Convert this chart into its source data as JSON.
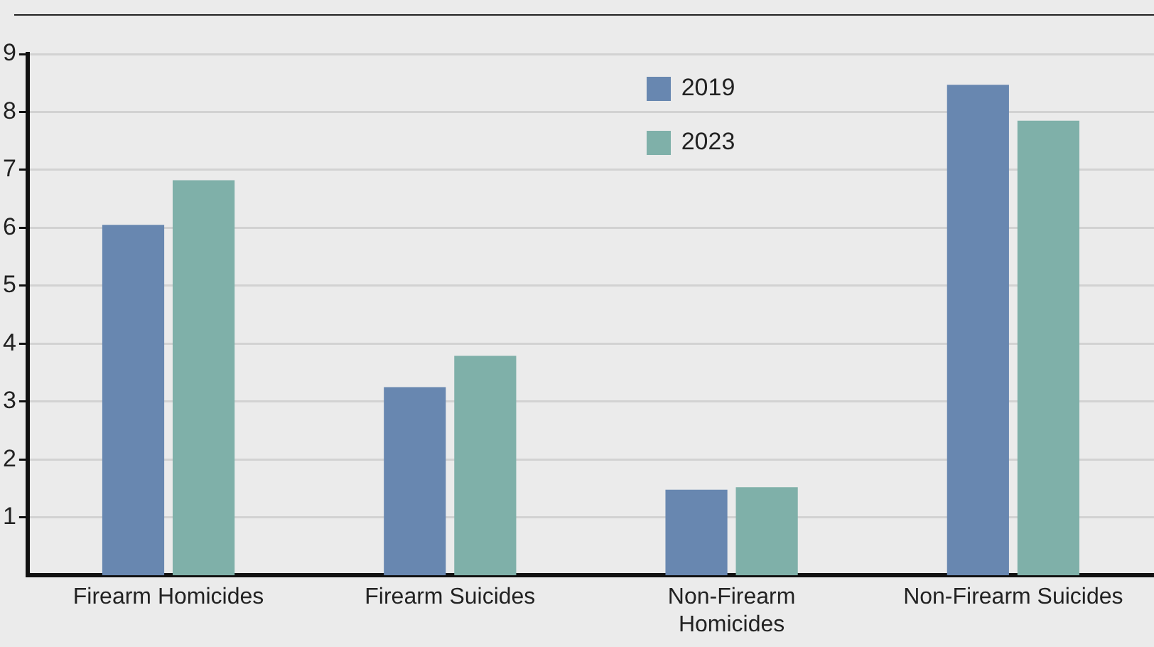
{
  "chart_data": {
    "type": "bar",
    "categories": [
      "Firearm Homicides",
      "Firearm Suicides",
      "Non-Firearm Homicides",
      "Non-Firearm Suicides"
    ],
    "series": [
      {
        "name": "2019",
        "color": "#6887b0",
        "values": [
          6.05,
          3.25,
          1.48,
          8.47
        ]
      },
      {
        "name": "2023",
        "color": "#7fb0a9",
        "values": [
          6.82,
          3.79,
          1.52,
          7.85
        ]
      }
    ],
    "ylim": [
      0,
      9
    ],
    "yticks": [
      1,
      2,
      3,
      4,
      5,
      6,
      7,
      8,
      9
    ],
    "grid": "y",
    "legend": "top"
  }
}
